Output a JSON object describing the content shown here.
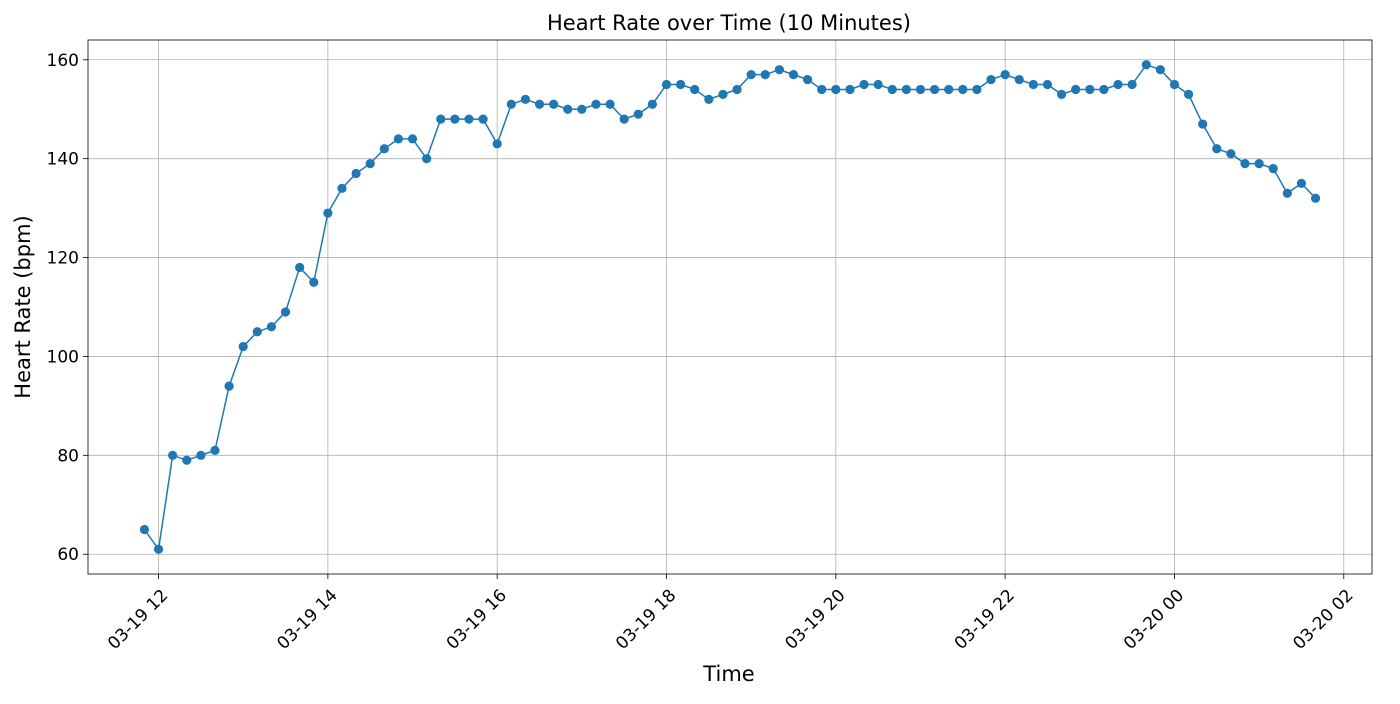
{
  "chart_data": {
    "type": "line",
    "title": "Heart Rate over Time (10 Minutes)",
    "xlabel": "Time",
    "ylabel": "Heart Rate (bpm)",
    "x_range": [
      "2024-03-19 11:10",
      "2024-03-20 02:20"
    ],
    "ylim": [
      56,
      164
    ],
    "grid": true,
    "legend": "none",
    "xticks": [
      {
        "t": "2024-03-19 12:00",
        "label": "03-19 12"
      },
      {
        "t": "2024-03-19 14:00",
        "label": "03-19 14"
      },
      {
        "t": "2024-03-19 16:00",
        "label": "03-19 16"
      },
      {
        "t": "2024-03-19 18:00",
        "label": "03-19 18"
      },
      {
        "t": "2024-03-19 20:00",
        "label": "03-19 20"
      },
      {
        "t": "2024-03-19 22:00",
        "label": "03-19 22"
      },
      {
        "t": "2024-03-20 00:00",
        "label": "03-20 00"
      },
      {
        "t": "2024-03-20 02:00",
        "label": "03-20 02"
      }
    ],
    "yticks": [
      60,
      80,
      100,
      120,
      140,
      160
    ],
    "series": [
      {
        "color": "#1f77b4",
        "x": [
          "2024-03-19 11:50",
          "2024-03-19 12:00",
          "2024-03-19 12:10",
          "2024-03-19 12:20",
          "2024-03-19 12:30",
          "2024-03-19 12:40",
          "2024-03-19 12:50",
          "2024-03-19 13:00",
          "2024-03-19 13:10",
          "2024-03-19 13:20",
          "2024-03-19 13:30",
          "2024-03-19 13:40",
          "2024-03-19 13:50",
          "2024-03-19 14:00",
          "2024-03-19 14:10",
          "2024-03-19 14:20",
          "2024-03-19 14:30",
          "2024-03-19 14:40",
          "2024-03-19 14:50",
          "2024-03-19 15:00",
          "2024-03-19 15:10",
          "2024-03-19 15:20",
          "2024-03-19 15:30",
          "2024-03-19 15:40",
          "2024-03-19 15:50",
          "2024-03-19 16:00",
          "2024-03-19 16:10",
          "2024-03-19 16:20",
          "2024-03-19 16:30",
          "2024-03-19 16:40",
          "2024-03-19 16:50",
          "2024-03-19 17:00",
          "2024-03-19 17:10",
          "2024-03-19 17:20",
          "2024-03-19 17:30",
          "2024-03-19 17:40",
          "2024-03-19 17:50",
          "2024-03-19 18:00",
          "2024-03-19 18:10",
          "2024-03-19 18:20",
          "2024-03-19 18:30",
          "2024-03-19 18:40",
          "2024-03-19 18:50",
          "2024-03-19 19:00",
          "2024-03-19 19:10",
          "2024-03-19 19:20",
          "2024-03-19 19:30",
          "2024-03-19 19:40",
          "2024-03-19 19:50",
          "2024-03-19 20:00",
          "2024-03-19 20:10",
          "2024-03-19 20:20",
          "2024-03-19 20:30",
          "2024-03-19 20:40",
          "2024-03-19 20:50",
          "2024-03-19 21:00",
          "2024-03-19 21:10",
          "2024-03-19 21:20",
          "2024-03-19 21:30",
          "2024-03-19 21:40",
          "2024-03-19 21:50",
          "2024-03-19 22:00",
          "2024-03-19 22:10",
          "2024-03-19 22:20",
          "2024-03-19 22:30",
          "2024-03-19 22:40",
          "2024-03-19 22:50",
          "2024-03-19 23:00",
          "2024-03-19 23:10",
          "2024-03-19 23:20",
          "2024-03-19 23:30",
          "2024-03-19 23:40",
          "2024-03-19 23:50",
          "2024-03-20 00:00",
          "2024-03-20 00:10",
          "2024-03-20 00:20",
          "2024-03-20 00:30",
          "2024-03-20 00:40",
          "2024-03-20 00:50",
          "2024-03-20 01:00",
          "2024-03-20 01:10",
          "2024-03-20 01:20",
          "2024-03-20 01:30",
          "2024-03-20 01:40"
        ],
        "y": [
          65,
          61,
          80,
          79,
          80,
          81,
          94,
          102,
          105,
          106,
          109,
          118,
          115,
          129,
          134,
          137,
          139,
          142,
          144,
          144,
          140,
          148,
          148,
          148,
          148,
          143,
          151,
          152,
          151,
          151,
          150,
          150,
          151,
          151,
          148,
          149,
          151,
          155,
          155,
          154,
          152,
          153,
          154,
          157,
          157,
          158,
          157,
          156,
          154,
          154,
          154,
          155,
          155,
          154,
          154,
          154,
          154,
          154,
          154,
          154,
          156,
          157,
          156,
          155,
          155,
          153,
          154,
          154,
          154,
          155,
          155,
          159,
          158,
          155,
          153,
          147,
          142,
          141,
          139,
          139,
          138,
          133,
          135,
          132
        ]
      }
    ]
  }
}
